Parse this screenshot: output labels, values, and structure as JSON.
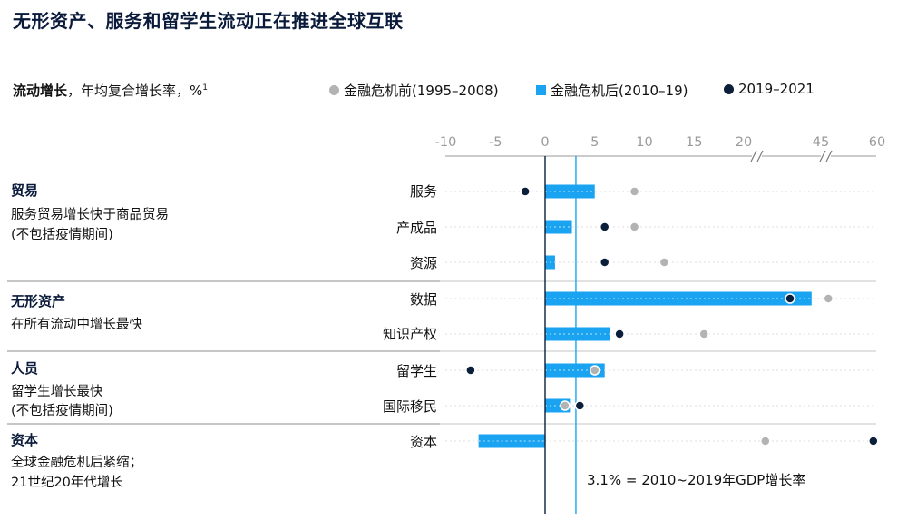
{
  "title": "无形资产、服务和留学生流动正在推进全球互联",
  "subtitle": {
    "bold": "流动增长",
    "rest": "，年均复合增长率，%",
    "footnote_mark": "1"
  },
  "legend": [
    {
      "marker": "grey-dot",
      "label": "金融危机前(1995–2008)",
      "color": "#b3b3b3"
    },
    {
      "marker": "blue-square",
      "label": "金融危机后(2010–19)",
      "color": "#1aa3f0"
    },
    {
      "marker": "navy-dot",
      "label": "2019–2021",
      "color": "#0b1e3a"
    }
  ],
  "groups": [
    {
      "name": "贸易",
      "desc": [
        "服务贸易增长快于商品贸易",
        "(不包括疫情期间)"
      ]
    },
    {
      "name": "无形资产",
      "desc": [
        "在所有流动中增长最快"
      ]
    },
    {
      "name": "人员",
      "desc": [
        "留学生增长最快",
        "(不包括疫情期间)"
      ]
    },
    {
      "name": "资本",
      "desc": [
        "全球金融危机后紧缩；",
        "21世纪20年代增长"
      ]
    }
  ],
  "reference_line_label": "3.1% = 2010~2019年GDP增长率",
  "chart_data": {
    "type": "bar",
    "x_ticks": [
      "-10",
      "-5",
      "0",
      "5",
      "10",
      "15",
      "20",
      "45",
      "60"
    ],
    "axis_breaks": [
      "20–45",
      "45–60"
    ],
    "reference_line": 3.1,
    "series_names": [
      "金融危机前(1995–2008)",
      "金融危机后(2010–19)",
      "2019–2021"
    ],
    "categories": [
      "服务",
      "产成品",
      "资源",
      "数据",
      "知识产权",
      "留学生",
      "国际移民",
      "资本"
    ],
    "category_groups": [
      "贸易",
      "贸易",
      "贸易",
      "无形资产",
      "无形资产",
      "人员",
      "人员",
      "资本"
    ],
    "pre_crisis": [
      9,
      9,
      12,
      47,
      16,
      5,
      2,
      27
    ],
    "post_crisis": [
      5,
      2.7,
      1,
      42,
      6.5,
      6,
      2.5,
      -6.7
    ],
    "y2019_2021": [
      -2,
      6,
      6,
      35,
      7.5,
      -7.5,
      3.5,
      59
    ]
  }
}
